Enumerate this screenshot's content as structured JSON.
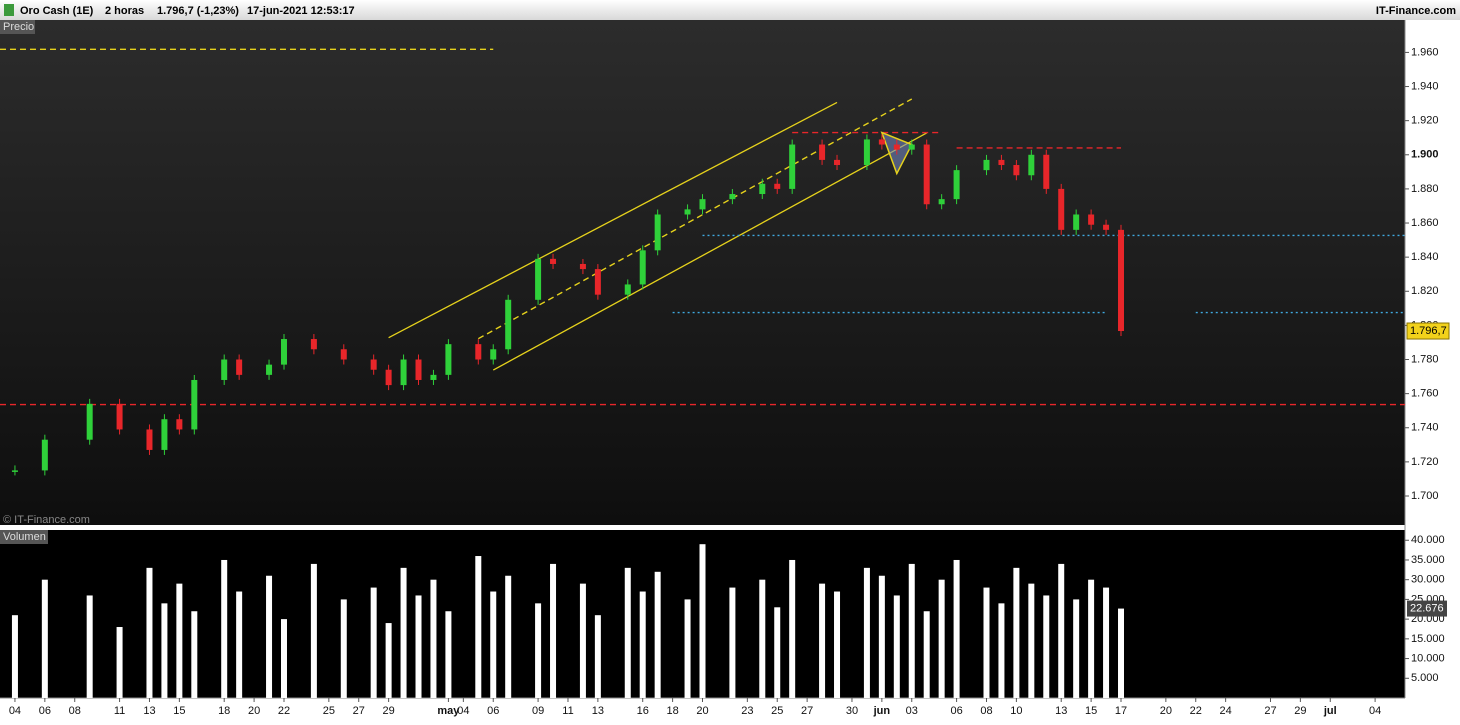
{
  "header": {
    "symbol": "Oro Cash (1E)",
    "interval": "2 horas",
    "quote": "1.796,7 (-1,23%)",
    "datetime": "17-jun-2021 12:53:17",
    "brand": "IT-Finance.com"
  },
  "chart_data": {
    "type": "candlestick",
    "panel_label": "Precio",
    "watermark": "© IT-Finance.com",
    "x": [
      "2021-04-04",
      "2021-04-06",
      "2021-04-09",
      "2021-04-11",
      "2021-04-13",
      "2021-04-14",
      "2021-04-15",
      "2021-04-16",
      "2021-04-18",
      "2021-04-19",
      "2021-04-21",
      "2021-04-22",
      "2021-04-24",
      "2021-04-26",
      "2021-04-28",
      "2021-04-29",
      "2021-04-30",
      "2021-05-01",
      "2021-05-02",
      "2021-05-03",
      "2021-05-05",
      "2021-05-06",
      "2021-05-07",
      "2021-05-09",
      "2021-05-10",
      "2021-05-12",
      "2021-05-13",
      "2021-05-15",
      "2021-05-16",
      "2021-05-17",
      "2021-05-19",
      "2021-05-20",
      "2021-05-22",
      "2021-05-24",
      "2021-05-25",
      "2021-05-26",
      "2021-05-28",
      "2021-05-29",
      "2021-05-31",
      "2021-06-01",
      "2021-06-02",
      "2021-06-03",
      "2021-06-04",
      "2021-06-05",
      "2021-06-06",
      "2021-06-08",
      "2021-06-09",
      "2021-06-10",
      "2021-06-11",
      "2021-06-12",
      "2021-06-13",
      "2021-06-14",
      "2021-06-15",
      "2021-06-16",
      "2021-06-17"
    ],
    "values": [
      1715,
      1733,
      1754,
      1739,
      1727,
      1745,
      1739,
      1768,
      1780,
      1771,
      1777,
      1792,
      1786,
      1780,
      1774,
      1765,
      1780,
      1768,
      1771,
      1789,
      1780,
      1786,
      1815,
      1839,
      1836,
      1833,
      1818,
      1824,
      1844,
      1865,
      1868,
      1874,
      1877,
      1883,
      1880,
      1906,
      1897,
      1894,
      1909,
      1906,
      1903,
      1906,
      1871,
      1874,
      1891,
      1897,
      1894,
      1888,
      1900,
      1880,
      1856,
      1865,
      1859,
      1856,
      1796.7
    ],
    "up_color": "#2fd13a",
    "down_color": "#e8262a",
    "last_price": {
      "value": 1796.7,
      "label": "1.796,7"
    },
    "xlim": [
      "2021-04-03",
      "2021-07-06"
    ],
    "xticks": [
      {
        "value": "2021-04-04",
        "label": "04"
      },
      {
        "value": "2021-04-06",
        "label": "06"
      },
      {
        "value": "2021-04-08",
        "label": "08"
      },
      {
        "value": "2021-04-11",
        "label": "11"
      },
      {
        "value": "2021-04-13",
        "label": "13"
      },
      {
        "value": "2021-04-15",
        "label": "15"
      },
      {
        "value": "2021-04-18",
        "label": "18"
      },
      {
        "value": "2021-04-20",
        "label": "20"
      },
      {
        "value": "2021-04-22",
        "label": "22"
      },
      {
        "value": "2021-04-25",
        "label": "25"
      },
      {
        "value": "2021-04-27",
        "label": "27"
      },
      {
        "value": "2021-04-29",
        "label": "29"
      },
      {
        "value": "2021-05-03",
        "label": "may"
      },
      {
        "value": "2021-05-04",
        "label": "04"
      },
      {
        "value": "2021-05-06",
        "label": "06"
      },
      {
        "value": "2021-05-09",
        "label": "09"
      },
      {
        "value": "2021-05-11",
        "label": "11"
      },
      {
        "value": "2021-05-13",
        "label": "13"
      },
      {
        "value": "2021-05-16",
        "label": "16"
      },
      {
        "value": "2021-05-18",
        "label": "18"
      },
      {
        "value": "2021-05-20",
        "label": "20"
      },
      {
        "value": "2021-05-23",
        "label": "23"
      },
      {
        "value": "2021-05-25",
        "label": "25"
      },
      {
        "value": "2021-05-27",
        "label": "27"
      },
      {
        "value": "2021-05-30",
        "label": "30"
      },
      {
        "value": "2021-06-01",
        "label": "jun"
      },
      {
        "value": "2021-06-03",
        "label": "03"
      },
      {
        "value": "2021-06-06",
        "label": "06"
      },
      {
        "value": "2021-06-08",
        "label": "08"
      },
      {
        "value": "2021-06-10",
        "label": "10"
      },
      {
        "value": "2021-06-13",
        "label": "13"
      },
      {
        "value": "2021-06-15",
        "label": "15"
      },
      {
        "value": "2021-06-17",
        "label": "17"
      },
      {
        "value": "2021-06-20",
        "label": "20"
      },
      {
        "value": "2021-06-22",
        "label": "22"
      },
      {
        "value": "2021-06-24",
        "label": "24"
      },
      {
        "value": "2021-06-27",
        "label": "27"
      },
      {
        "value": "2021-06-29",
        "label": "29"
      },
      {
        "value": "2021-07-01",
        "label": "jul"
      },
      {
        "value": "2021-07-04",
        "label": "04"
      }
    ],
    "ylim": [
      1683,
      1979
    ],
    "yticks": [
      {
        "value": 1700,
        "label": "1.700"
      },
      {
        "value": 1720,
        "label": "1.720"
      },
      {
        "value": 1740,
        "label": "1.740"
      },
      {
        "value": 1760,
        "label": "1.760"
      },
      {
        "value": 1780,
        "label": "1.780"
      },
      {
        "value": 1800,
        "label": "1.800"
      },
      {
        "value": 1820,
        "label": "1.820"
      },
      {
        "value": 1840,
        "label": "1.840"
      },
      {
        "value": 1860,
        "label": "1.860"
      },
      {
        "value": 1880,
        "label": "1.880"
      },
      {
        "value": 1900,
        "label": "1.900"
      },
      {
        "value": 1920,
        "label": "1.920"
      },
      {
        "value": 1940,
        "label": "1.940"
      },
      {
        "value": 1960,
        "label": "1.960"
      }
    ],
    "drawings": [
      {
        "x": [
          "2021-04-29",
          "2021-05-29"
        ],
        "y": [
          1792.8,
          1930.7
        ],
        "color": "#e6d21c",
        "style": "solid"
      },
      {
        "x": [
          "2021-05-06",
          "2021-06-04"
        ],
        "y": [
          1773.8,
          1912.8
        ],
        "color": "#e6d21c",
        "style": "solid"
      },
      {
        "x": [
          "2021-05-05",
          "2021-06-03"
        ],
        "y": [
          1792.2,
          1932.7
        ],
        "color": "#e6d21c",
        "style": "dashed"
      },
      {
        "x": [
          "2021-04-03",
          "2021-05-06"
        ],
        "y": [
          1961.8,
          1961.8
        ],
        "color": "#e6d21c",
        "style": "dashed"
      },
      {
        "x": [
          "2021-05-26",
          "2021-06-05"
        ],
        "y": [
          1913,
          1913
        ],
        "color": "#e8262a",
        "style": "dashed"
      },
      {
        "x": [
          "2021-06-06",
          "2021-06-17"
        ],
        "y": [
          1904,
          1904
        ],
        "color": "#e8262a",
        "style": "dashed"
      },
      {
        "x": [
          "2021-04-03",
          "2021-07-06"
        ],
        "y": [
          1753.6,
          1753.6
        ],
        "color": "#e8262a",
        "style": "dashed"
      },
      {
        "x": [
          "2021-05-20",
          "2021-07-06"
        ],
        "y": [
          1852.7,
          1852.7
        ],
        "color": "#3fa9e0",
        "style": "dotted"
      },
      {
        "x": [
          "2021-05-18",
          "2021-06-16"
        ],
        "y": [
          1807.5,
          1807.5
        ],
        "color": "#3fa9e0",
        "style": "dotted"
      },
      {
        "x": [
          "2021-06-22",
          "2021-07-06"
        ],
        "y": [
          1807.5,
          1807.5
        ],
        "color": "#3fa9e0",
        "style": "dotted"
      }
    ],
    "triangle": {
      "x": [
        "2021-06-01",
        "2021-06-03",
        "2021-06-02"
      ],
      "y": [
        1913,
        1906,
        1889
      ],
      "color": "#e6d21c"
    },
    "volume": {
      "label": "Volumen",
      "color": "#ffffff",
      "values": [
        21000,
        30000,
        26000,
        18000,
        33000,
        24000,
        29000,
        22000,
        35000,
        27000,
        31000,
        20000,
        34000,
        25000,
        28000,
        19000,
        33000,
        26000,
        30000,
        22000,
        36000,
        27000,
        31000,
        24000,
        34000,
        29000,
        21000,
        33000,
        27000,
        32000,
        25000,
        39000,
        28000,
        30000,
        23000,
        35000,
        29000,
        27000,
        33000,
        31000,
        26000,
        34000,
        22000,
        30000,
        35000,
        28000,
        24000,
        33000,
        29000,
        26000,
        34000,
        25000,
        30000,
        28000,
        22676
      ],
      "last_label": {
        "value": 22676,
        "label": "22.676"
      },
      "ylim": [
        0,
        42600
      ],
      "yticks": [
        {
          "value": 5000,
          "label": "5.000"
        },
        {
          "value": 10000,
          "label": "10.000"
        },
        {
          "value": 15000,
          "label": "15.000"
        },
        {
          "value": 20000,
          "label": "20.000"
        },
        {
          "value": 25000,
          "label": "25.000"
        },
        {
          "value": 30000,
          "label": "30.000"
        },
        {
          "value": 35000,
          "label": "35.000"
        },
        {
          "value": 40000,
          "label": "40.000"
        }
      ]
    }
  }
}
